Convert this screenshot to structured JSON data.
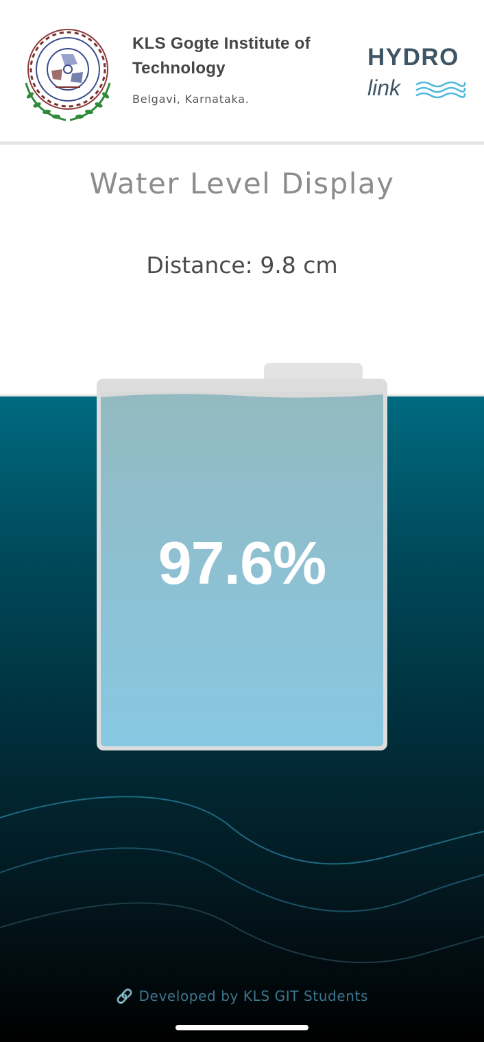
{
  "header": {
    "institution_name": "KLS Gogte Institute of Technology",
    "location": "Belgavi, Karnataka.",
    "brand_line1": "HYDRO",
    "brand_line2": "link"
  },
  "main": {
    "title": "Water Level Display",
    "distance_label": "Distance:",
    "distance_value": "9.8",
    "distance_unit": "cm",
    "fill_percent_text": "97.6%",
    "fill_fraction": 0.976
  },
  "footer": {
    "credit": "Developed by KLS GIT Students",
    "icon": "link-icon"
  },
  "colors": {
    "brand": "#3e5566",
    "water": "#88c8e2",
    "ocean_top": "#006a80",
    "footer_text": "#3d7690"
  }
}
